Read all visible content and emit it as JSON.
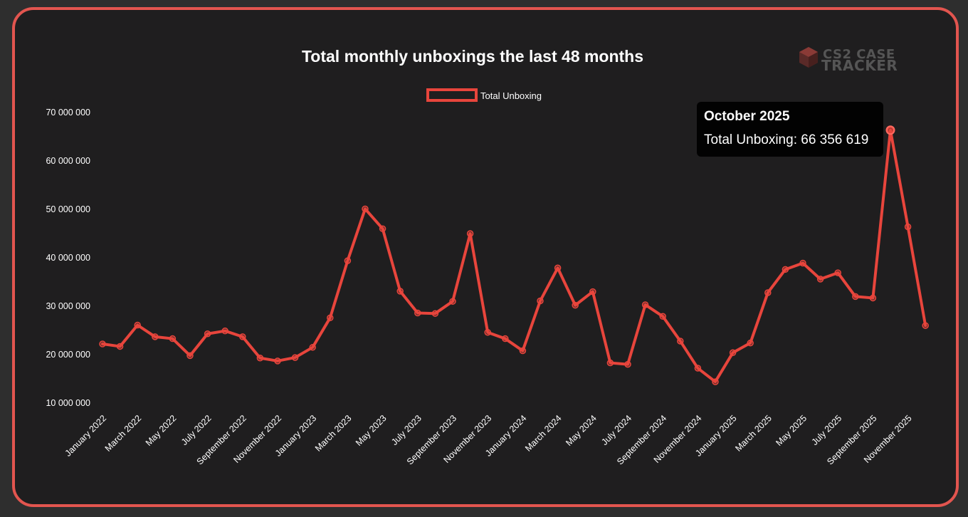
{
  "brand": {
    "line1": "CS2 CASE",
    "line2": "TRACKER",
    "icon": "box-icon"
  },
  "colors": {
    "accent": "#e2554f",
    "line": "#e8453c",
    "background": "#1f1e1f"
  },
  "tooltip": {
    "title": "October 2025",
    "label": "Total Unboxing: 66 356 619",
    "index": 45
  },
  "chart_data": {
    "type": "line",
    "title": "Total monthly unboxings the last 48 months",
    "legend": {
      "placement": "top-center"
    },
    "grid": false,
    "ylim": [
      10000000,
      70000000
    ],
    "yticks": [
      "10 000 000",
      "20 000 000",
      "30 000 000",
      "40 000 000",
      "50 000 000",
      "60 000 000",
      "70 000 000"
    ],
    "ytick_values": [
      10000000,
      20000000,
      30000000,
      40000000,
      50000000,
      60000000,
      70000000
    ],
    "xtick_labels": [
      "January 2022",
      "March 2022",
      "May 2022",
      "July 2022",
      "September 2022",
      "November 2022",
      "January 2023",
      "March 2023",
      "May 2023",
      "July 2023",
      "September 2023",
      "November 2023",
      "January 2024",
      "March 2024",
      "May 2024",
      "July 2024",
      "September 2024",
      "November 2024",
      "January 2025",
      "March 2025",
      "May 2025",
      "July 2025",
      "September 2025",
      "November 2025"
    ],
    "x": [
      "2022-01",
      "2022-02",
      "2022-03",
      "2022-04",
      "2022-05",
      "2022-06",
      "2022-07",
      "2022-08",
      "2022-09",
      "2022-10",
      "2022-11",
      "2022-12",
      "2023-01",
      "2023-02",
      "2023-03",
      "2023-04",
      "2023-05",
      "2023-06",
      "2023-07",
      "2023-08",
      "2023-09",
      "2023-10",
      "2023-11",
      "2023-12",
      "2024-01",
      "2024-02",
      "2024-03",
      "2024-04",
      "2024-05",
      "2024-06",
      "2024-07",
      "2024-08",
      "2024-09",
      "2024-10",
      "2024-11",
      "2024-12",
      "2025-01",
      "2025-02",
      "2025-03",
      "2025-04",
      "2025-05",
      "2025-06",
      "2025-07",
      "2025-08",
      "2025-09",
      "2025-10",
      "2025-11",
      "2025-12"
    ],
    "series": [
      {
        "name": "Total Unboxing",
        "values": [
          22200000,
          21700000,
          26100000,
          23700000,
          23300000,
          19800000,
          24300000,
          24900000,
          23700000,
          19300000,
          18700000,
          19400000,
          21500000,
          27600000,
          39400000,
          50100000,
          46000000,
          33100000,
          28600000,
          28500000,
          31000000,
          45000000,
          24600000,
          23300000,
          20800000,
          31100000,
          37900000,
          30200000,
          33000000,
          18300000,
          18000000,
          30300000,
          27900000,
          22800000,
          17200000,
          14400000,
          20400000,
          22400000,
          32800000,
          37600000,
          38900000,
          35600000,
          36900000,
          32000000,
          31700000,
          66356619,
          46400000,
          26000000
        ]
      }
    ]
  }
}
